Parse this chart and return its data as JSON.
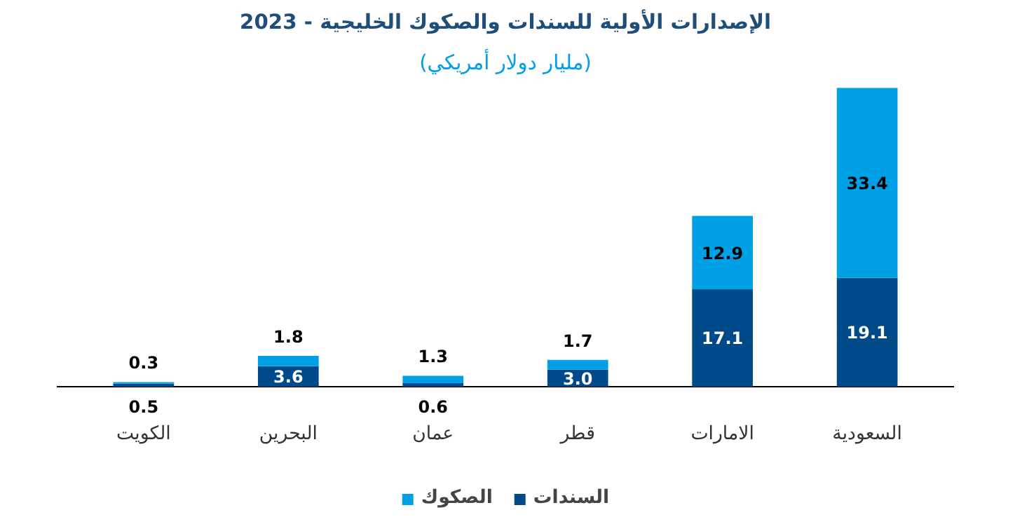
{
  "chart_data": {
    "type": "bar",
    "title": "الإصدارات الأولية للسندات والصكوك الخليجية - 2023",
    "subtitle": "(مليار دولار أمريكي)",
    "categories": [
      "الكويت",
      "البحرين",
      "عمان",
      "قطر",
      "الامارات",
      "السعودية"
    ],
    "stacked": true,
    "data_labels": true,
    "legend": "bottom",
    "grid": false,
    "series": [
      {
        "name": "السندات",
        "color": "#004a8a",
        "values": [
          0.5,
          3.6,
          0.6,
          3.0,
          17.1,
          19.1
        ],
        "value_labels": [
          "0.5",
          "3.6",
          "0.6",
          "3.0",
          "17.1",
          "19.1"
        ]
      },
      {
        "name": "الصكوك",
        "color": "#00a0e6",
        "values": [
          0.3,
          1.8,
          1.3,
          1.7,
          12.9,
          33.4
        ]
      }
    ]
  }
}
